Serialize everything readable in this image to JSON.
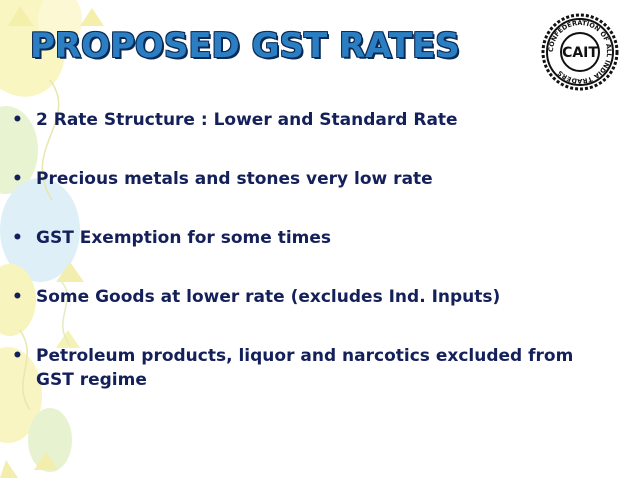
{
  "slide": {
    "title": "PROPOSED GST RATES",
    "bullets": [
      "2 Rate Structure : Lower and Standard Rate",
      "Precious metals and stones very low rate",
      "GST Exemption for some times",
      "Some Goods at lower rate (excludes Ind. Inputs)",
      "Petroleum products, liquor and narcotics excluded from GST regime"
    ],
    "bullet_marker": "•"
  },
  "logo": {
    "center_text": "CAIT",
    "ring_text": "CONFEDERATION OF ALL INDIA TRADERS"
  },
  "colors": {
    "title_fill": "#2a7ec1",
    "title_outline": "#0b2a55",
    "body_text": "#14205a",
    "balloon_yellow": "#f6f3b0",
    "balloon_blue": "#d6ecf6",
    "balloon_green": "#e2f0c6"
  },
  "icons": [
    "balloon-decoration",
    "cait-logo"
  ]
}
